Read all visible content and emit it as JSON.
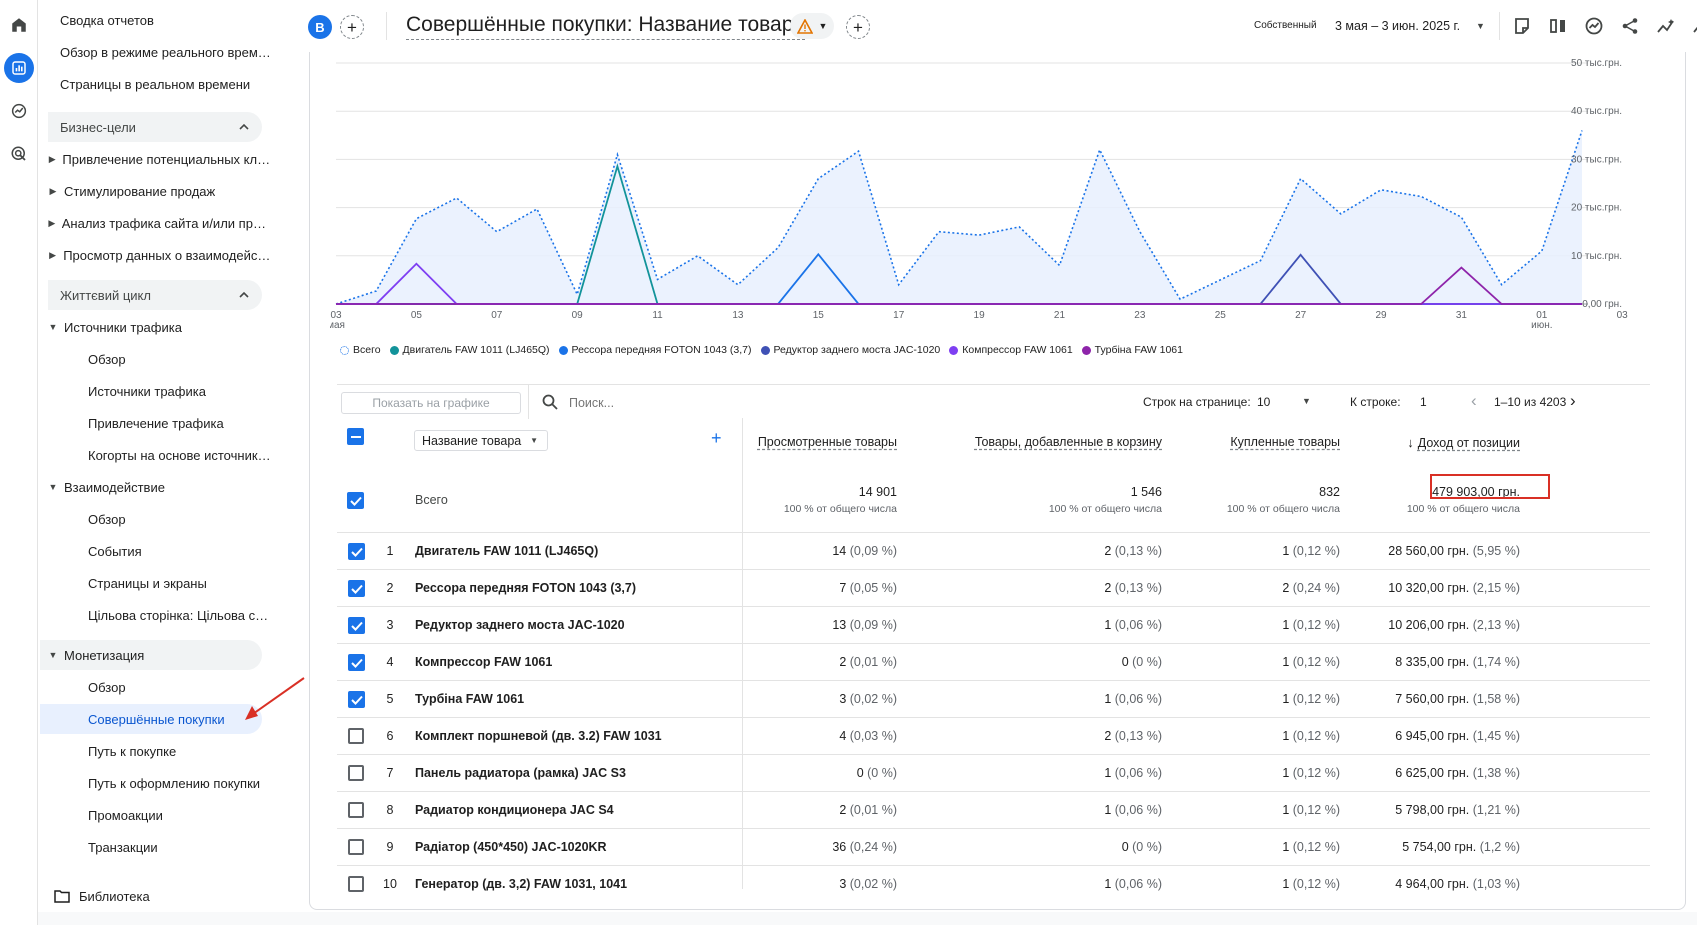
{
  "header": {
    "property_letter": "B",
    "title": "Совершённые покупки: Название товара",
    "comparison_label": "Собственный",
    "date_range": "3 мая – 3 июн. 2025 г."
  },
  "sidebar": {
    "items": [
      {
        "label": "Сводка отчетов"
      },
      {
        "label": "Обзор в режиме реального времени"
      },
      {
        "label": "Страницы в реальном времени"
      },
      {
        "label": "Бизнес-цели"
      },
      {
        "label": "Привлечение потенциальных клиентов"
      },
      {
        "label": "Стимулирование продаж"
      },
      {
        "label": "Анализ трафика сайта и/или приложения"
      },
      {
        "label": "Просмотр данных о взаимодействии"
      },
      {
        "label": "Життєвий цикл"
      },
      {
        "label": "Источники трафика"
      },
      {
        "label": "Обзор"
      },
      {
        "label": "Источники трафика"
      },
      {
        "label": "Привлечение трафика"
      },
      {
        "label": "Когорты на основе источников трафика"
      },
      {
        "label": "Взаимодействие"
      },
      {
        "label": "Обзор"
      },
      {
        "label": "События"
      },
      {
        "label": "Страницы и экраны"
      },
      {
        "label": "Цільова сторінка: Цільова сторінка"
      },
      {
        "label": "Монетизация"
      },
      {
        "label": "Обзор"
      },
      {
        "label": "Совершённые покупки"
      },
      {
        "label": "Путь к покупке"
      },
      {
        "label": "Путь к оформлению покупки"
      },
      {
        "label": "Промоакции"
      },
      {
        "label": "Транзакции"
      }
    ],
    "library_label": "Библиотека"
  },
  "toolbar": {
    "show_on_chart": "Показать на графике",
    "search_placeholder": "Поиск...",
    "rows_per_page_label": "Строк на странице:",
    "rows_per_page": "10",
    "go_to_row_label": "К строке:",
    "go_to_row": "1",
    "pagination": "1–10 из 4203"
  },
  "table": {
    "dimension_label": "Название товара",
    "columns": [
      "Просмотренные товары",
      "Товары, добавленные в корзину",
      "Купленные товары",
      "Доход от позиции"
    ],
    "totals": {
      "label": "Всего",
      "values": [
        "14 901",
        "1 546",
        "832",
        "479 903,00 грн."
      ],
      "sub": "100 % от общего числа"
    },
    "rows": [
      {
        "n": "1",
        "name": "Двигатель FAW 1011 (LJ465Q)",
        "v": [
          "14",
          "2",
          "1",
          "28 560,00 грн."
        ],
        "p": [
          "(0,09 %)",
          "(0,13 %)",
          "(0,12 %)",
          "(5,95 %)"
        ],
        "checked": true
      },
      {
        "n": "2",
        "name": "Рессора передняя FOTON 1043 (3,7)",
        "v": [
          "7",
          "2",
          "2",
          "10 320,00 грн."
        ],
        "p": [
          "(0,05 %)",
          "(0,13 %)",
          "(0,24 %)",
          "(2,15 %)"
        ],
        "checked": true
      },
      {
        "n": "3",
        "name": "Редуктор заднего моста JAC-1020",
        "v": [
          "13",
          "1",
          "1",
          "10 206,00 грн."
        ],
        "p": [
          "(0,09 %)",
          "(0,06 %)",
          "(0,12 %)",
          "(2,13 %)"
        ],
        "checked": true
      },
      {
        "n": "4",
        "name": "Компрессор FAW 1061",
        "v": [
          "2",
          "0",
          "1",
          "8 335,00 грн."
        ],
        "p": [
          "(0,01 %)",
          "(0 %)",
          "(0,12 %)",
          "(1,74 %)"
        ],
        "checked": true
      },
      {
        "n": "5",
        "name": "Турбіна FAW 1061",
        "v": [
          "3",
          "1",
          "1",
          "7 560,00 грн."
        ],
        "p": [
          "(0,02 %)",
          "(0,06 %)",
          "(0,12 %)",
          "(1,58 %)"
        ],
        "checked": true
      },
      {
        "n": "6",
        "name": "Комплект поршневой (дв. 3.2) FAW 1031",
        "v": [
          "4",
          "2",
          "1",
          "6 945,00 грн."
        ],
        "p": [
          "(0,03 %)",
          "(0,13 %)",
          "(0,12 %)",
          "(1,45 %)"
        ],
        "checked": false
      },
      {
        "n": "7",
        "name": "Панель радиатора (рамка) JAC S3",
        "v": [
          "0",
          "1",
          "1",
          "6 625,00 грн."
        ],
        "p": [
          "(0 %)",
          "(0,06 %)",
          "(0,12 %)",
          "(1,38 %)"
        ],
        "checked": false
      },
      {
        "n": "8",
        "name": "Радиатор кондиционера JAC S4",
        "v": [
          "2",
          "1",
          "1",
          "5 798,00 грн."
        ],
        "p": [
          "(0,01 %)",
          "(0,06 %)",
          "(0,12 %)",
          "(1,21 %)"
        ],
        "checked": false
      },
      {
        "n": "9",
        "name": "Радіатор (450*450) JAC-1020KR",
        "v": [
          "36",
          "0",
          "1",
          "5 754,00 грн."
        ],
        "p": [
          "(0,24 %)",
          "(0 %)",
          "(0,12 %)",
          "(1,2 %)"
        ],
        "checked": false
      },
      {
        "n": "10",
        "name": "Генератор (дв. 3,2) FAW 1031, 1041",
        "v": [
          "3",
          "1",
          "1",
          "4 964,00 грн."
        ],
        "p": [
          "(0,02 %)",
          "(0,06 %)",
          "(0,12 %)",
          "(1,03 %)"
        ],
        "checked": false
      }
    ]
  },
  "chart_data": {
    "type": "line",
    "x": [
      "03 мая",
      "04",
      "05",
      "06",
      "07",
      "08",
      "09",
      "10",
      "11",
      "12",
      "13",
      "14",
      "15",
      "16",
      "17",
      "18",
      "19",
      "20",
      "21",
      "22",
      "23",
      "24",
      "25",
      "26",
      "27",
      "28",
      "29",
      "30",
      "31",
      "01 июн.",
      "02",
      "03"
    ],
    "x_tick_labels": [
      "03\nмая",
      "05",
      "07",
      "09",
      "11",
      "13",
      "15",
      "17",
      "19",
      "21",
      "23",
      "25",
      "27",
      "29",
      "31",
      "01\nиюн.",
      "03"
    ],
    "y_tick_labels": [
      "0,00 грн.",
      "10 тыс.грн.",
      "20 тыс.грн.",
      "30 тыс.грн.",
      "40 тыс.грн.",
      "50 тыс.грн."
    ],
    "ylim": [
      0,
      50000
    ],
    "grid": true,
    "legend_position": "bottom",
    "series": [
      {
        "name": "Всего",
        "color": "#1a73e8",
        "style": "dotted-area",
        "values": [
          0,
          2700,
          17700,
          22000,
          15000,
          19700,
          2000,
          31000,
          5100,
          10000,
          4000,
          11700,
          26000,
          31700,
          4000,
          15000,
          14300,
          16000,
          8000,
          32000,
          15000,
          1000,
          5000,
          9000,
          26000,
          18700,
          23700,
          22300,
          18000,
          4000,
          11000,
          36000
        ]
      },
      {
        "name": "Двигатель FAW 1011 (LJ465Q)",
        "color": "#12939a",
        "values": [
          0,
          0,
          0,
          0,
          0,
          0,
          0,
          28560,
          0,
          0,
          0,
          0,
          0,
          0,
          0,
          0,
          0,
          0,
          0,
          0,
          0,
          0,
          0,
          0,
          0,
          0,
          0,
          0,
          0,
          0,
          0,
          0
        ]
      },
      {
        "name": "Рессора передняя FOTON 1043 (3,7)",
        "color": "#1a73e8",
        "values": [
          0,
          0,
          0,
          0,
          0,
          0,
          0,
          0,
          0,
          0,
          0,
          0,
          10320,
          0,
          0,
          0,
          0,
          0,
          0,
          0,
          0,
          0,
          0,
          0,
          0,
          0,
          0,
          0,
          0,
          0,
          0,
          0
        ]
      },
      {
        "name": "Редуктор заднего моста JAC-1020",
        "color": "#3f51b5",
        "values": [
          0,
          0,
          0,
          0,
          0,
          0,
          0,
          0,
          0,
          0,
          0,
          0,
          0,
          0,
          0,
          0,
          0,
          0,
          0,
          0,
          0,
          0,
          0,
          0,
          10206,
          0,
          0,
          0,
          0,
          0,
          0,
          0
        ]
      },
      {
        "name": "Компрессор FAW 1061",
        "color": "#7e3ff2",
        "values": [
          0,
          0,
          8335,
          0,
          0,
          0,
          0,
          0,
          0,
          0,
          0,
          0,
          0,
          0,
          0,
          0,
          0,
          0,
          0,
          0,
          0,
          0,
          0,
          0,
          0,
          0,
          0,
          0,
          0,
          0,
          0,
          0
        ]
      },
      {
        "name": "Турбіна FAW 1061",
        "color": "#8e24aa",
        "values": [
          0,
          0,
          0,
          0,
          0,
          0,
          0,
          0,
          0,
          0,
          0,
          0,
          0,
          0,
          0,
          0,
          0,
          0,
          0,
          0,
          0,
          0,
          0,
          0,
          0,
          0,
          0,
          0,
          7560,
          0,
          0,
          0
        ]
      }
    ]
  }
}
